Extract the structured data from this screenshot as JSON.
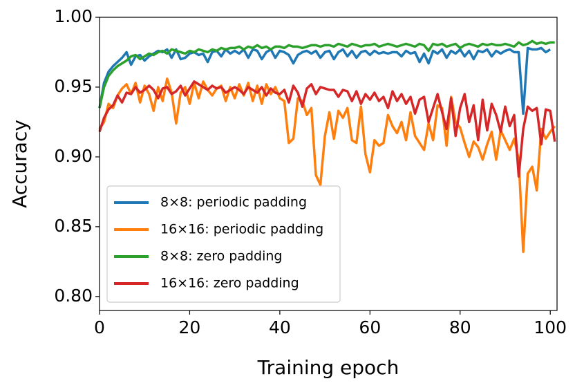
{
  "chart_data": {
    "type": "line",
    "xlabel": "Training epoch",
    "ylabel": "Accuracy",
    "xlim": [
      0,
      101.5
    ],
    "ylim": [
      0.79,
      1.0
    ],
    "xticks": [
      0,
      20,
      40,
      60,
      80,
      100
    ],
    "yticks": [
      {
        "value": 0.8,
        "label": "0.80"
      },
      {
        "value": 0.85,
        "label": "0.85"
      },
      {
        "value": 0.9,
        "label": "0.90"
      },
      {
        "value": 0.95,
        "label": "0.95"
      },
      {
        "value": 1.0,
        "label": "1.00"
      }
    ],
    "legend": "lower left",
    "grid": false,
    "x": [
      0,
      1,
      2,
      3,
      4,
      5,
      6,
      7,
      8,
      9,
      10,
      11,
      12,
      13,
      14,
      15,
      16,
      17,
      18,
      19,
      20,
      21,
      22,
      23,
      24,
      25,
      26,
      27,
      28,
      29,
      30,
      31,
      32,
      33,
      34,
      35,
      36,
      37,
      38,
      39,
      40,
      41,
      42,
      43,
      44,
      45,
      46,
      47,
      48,
      49,
      50,
      51,
      52,
      53,
      54,
      55,
      56,
      57,
      58,
      59,
      60,
      61,
      62,
      63,
      64,
      65,
      66,
      67,
      68,
      69,
      70,
      71,
      72,
      73,
      74,
      75,
      76,
      77,
      78,
      79,
      80,
      81,
      82,
      83,
      84,
      85,
      86,
      87,
      88,
      89,
      90,
      91,
      92,
      93,
      94,
      95,
      96,
      97,
      98,
      99,
      100,
      101
    ],
    "series": [
      {
        "name": "8×8: periodic padding",
        "color": "#1f77b4",
        "values": [
          0.935,
          0.953,
          0.961,
          0.965,
          0.968,
          0.971,
          0.975,
          0.966,
          0.972,
          0.973,
          0.969,
          0.972,
          0.974,
          0.976,
          0.975,
          0.977,
          0.971,
          0.977,
          0.97,
          0.971,
          0.974,
          0.975,
          0.973,
          0.974,
          0.968,
          0.975,
          0.976,
          0.972,
          0.977,
          0.974,
          0.976,
          0.974,
          0.977,
          0.971,
          0.977,
          0.976,
          0.97,
          0.975,
          0.977,
          0.971,
          0.976,
          0.975,
          0.973,
          0.967,
          0.973,
          0.975,
          0.976,
          0.974,
          0.976,
          0.971,
          0.975,
          0.976,
          0.97,
          0.975,
          0.977,
          0.972,
          0.976,
          0.971,
          0.975,
          0.976,
          0.973,
          0.976,
          0.974,
          0.975,
          0.974,
          0.975,
          0.975,
          0.972,
          0.976,
          0.974,
          0.975,
          0.968,
          0.974,
          0.967,
          0.976,
          0.974,
          0.977,
          0.971,
          0.976,
          0.974,
          0.977,
          0.972,
          0.976,
          0.97,
          0.976,
          0.975,
          0.977,
          0.972,
          0.976,
          0.974,
          0.976,
          0.977,
          0.975,
          0.975,
          0.931,
          0.978,
          0.977,
          0.977,
          0.978,
          0.975,
          0.977,
          null
        ]
      },
      {
        "name": "16×16: periodic padding",
        "color": "#ff7f0e",
        "values": [
          0.92,
          0.925,
          0.938,
          0.935,
          0.944,
          0.949,
          0.952,
          0.945,
          0.953,
          0.939,
          0.951,
          0.945,
          0.933,
          0.95,
          0.94,
          0.956,
          0.946,
          0.924,
          0.946,
          0.95,
          0.938,
          0.953,
          0.942,
          0.954,
          0.948,
          0.944,
          0.949,
          0.951,
          0.94,
          0.95,
          0.942,
          0.952,
          0.944,
          0.953,
          0.94,
          0.951,
          0.938,
          0.952,
          0.945,
          0.95,
          0.942,
          0.94,
          0.91,
          0.913,
          0.942,
          0.94,
          0.93,
          0.935,
          0.887,
          0.88,
          0.915,
          0.932,
          0.913,
          0.933,
          0.928,
          0.935,
          0.912,
          0.91,
          0.936,
          0.902,
          0.889,
          0.912,
          0.908,
          0.91,
          0.93,
          0.922,
          0.917,
          0.925,
          0.912,
          0.932,
          0.915,
          0.91,
          0.905,
          0.924,
          0.912,
          0.937,
          0.935,
          0.908,
          0.943,
          0.925,
          0.921,
          0.91,
          0.9,
          0.911,
          0.907,
          0.898,
          0.909,
          0.918,
          0.898,
          0.919,
          0.912,
          0.905,
          0.913,
          0.898,
          0.832,
          0.888,
          0.893,
          0.876,
          0.92,
          0.913,
          0.918,
          0.922
        ]
      },
      {
        "name": "8×8: zero padding",
        "color": "#2ca02c",
        "values": [
          0.935,
          0.95,
          0.958,
          0.962,
          0.965,
          0.967,
          0.969,
          0.972,
          0.973,
          0.97,
          0.972,
          0.974,
          0.973,
          0.975,
          0.976,
          0.974,
          0.977,
          0.976,
          0.975,
          0.974,
          0.976,
          0.975,
          0.977,
          0.976,
          0.975,
          0.977,
          0.976,
          0.978,
          0.977,
          0.978,
          0.978,
          0.979,
          0.977,
          0.979,
          0.978,
          0.98,
          0.978,
          0.979,
          0.977,
          0.979,
          0.979,
          0.978,
          0.98,
          0.979,
          0.979,
          0.978,
          0.979,
          0.98,
          0.98,
          0.979,
          0.98,
          0.98,
          0.979,
          0.981,
          0.98,
          0.979,
          0.981,
          0.98,
          0.979,
          0.98,
          0.98,
          0.981,
          0.979,
          0.98,
          0.981,
          0.98,
          0.979,
          0.98,
          0.981,
          0.98,
          0.979,
          0.981,
          0.98,
          0.976,
          0.981,
          0.98,
          0.981,
          0.979,
          0.98,
          0.981,
          0.978,
          0.98,
          0.981,
          0.98,
          0.979,
          0.981,
          0.98,
          0.981,
          0.98,
          0.98,
          0.981,
          0.98,
          0.979,
          0.982,
          0.98,
          0.981,
          0.983,
          0.981,
          0.982,
          0.981,
          0.982,
          0.982
        ]
      },
      {
        "name": "16×16: zero padding",
        "color": "#d62728",
        "values": [
          0.918,
          0.928,
          0.934,
          0.937,
          0.944,
          0.939,
          0.946,
          0.945,
          0.95,
          0.946,
          0.948,
          0.951,
          0.948,
          0.942,
          0.949,
          0.95,
          0.945,
          0.947,
          0.951,
          0.944,
          0.949,
          0.954,
          0.952,
          0.95,
          0.948,
          0.951,
          0.949,
          0.95,
          0.946,
          0.948,
          0.95,
          0.948,
          0.945,
          0.95,
          0.948,
          0.946,
          0.95,
          0.944,
          0.949,
          0.946,
          0.945,
          0.948,
          0.939,
          0.951,
          0.946,
          0.936,
          0.949,
          0.952,
          0.945,
          0.95,
          0.949,
          0.948,
          0.948,
          0.943,
          0.948,
          0.947,
          0.94,
          0.947,
          0.938,
          0.945,
          0.941,
          0.946,
          0.94,
          0.943,
          0.935,
          0.947,
          0.94,
          0.945,
          0.938,
          0.943,
          0.931,
          0.941,
          0.943,
          0.925,
          0.935,
          0.945,
          0.932,
          0.92,
          0.942,
          0.915,
          0.935,
          0.945,
          0.925,
          0.937,
          0.912,
          0.941,
          0.919,
          0.938,
          0.93,
          0.918,
          0.936,
          0.922,
          0.93,
          0.886,
          0.92,
          0.936,
          0.933,
          0.935,
          0.909,
          0.934,
          0.933,
          0.911
        ]
      }
    ]
  }
}
